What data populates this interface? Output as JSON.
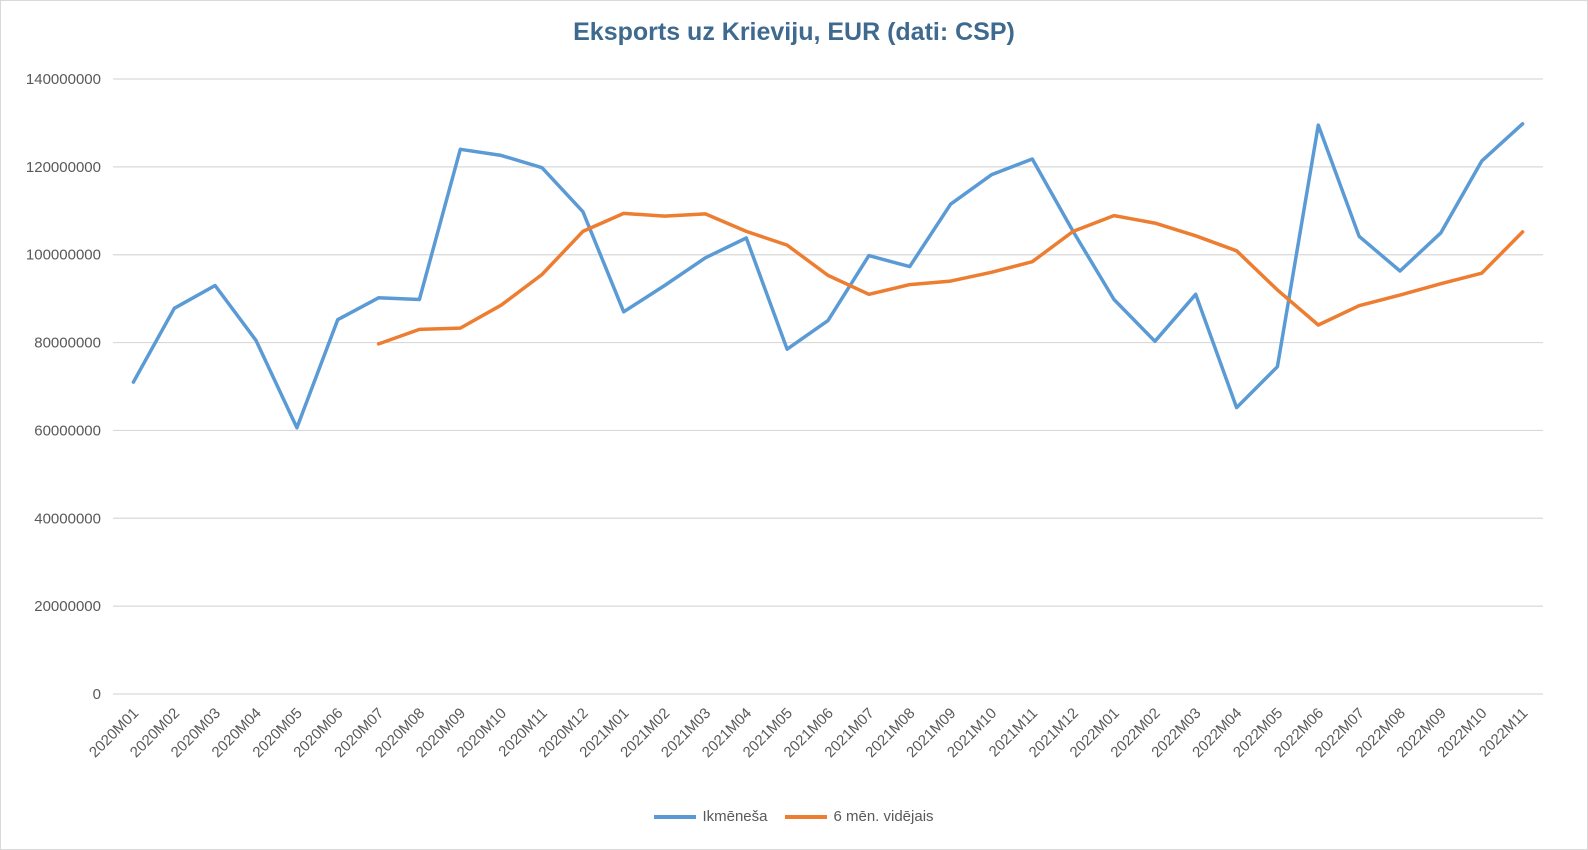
{
  "chart_data": {
    "type": "line",
    "title": "Eksports uz Krieviju, EUR (dati: CSP)",
    "xlabel": "",
    "ylabel": "",
    "ylim": [
      0,
      140000000
    ],
    "yticks": [
      0,
      20000000,
      40000000,
      60000000,
      80000000,
      100000000,
      120000000,
      140000000
    ],
    "ytick_labels": [
      "0",
      "20000000",
      "40000000",
      "60000000",
      "80000000",
      "100000000",
      "120000000",
      "140000000"
    ],
    "grid": true,
    "legend": "bottom",
    "categories": [
      "2020M01",
      "2020M02",
      "2020M03",
      "2020M04",
      "2020M05",
      "2020M06",
      "2020M07",
      "2020M08",
      "2020M09",
      "2020M10",
      "2020M11",
      "2020M12",
      "2021M01",
      "2021M02",
      "2021M03",
      "2021M04",
      "2021M05",
      "2021M06",
      "2021M07",
      "2021M08",
      "2021M09",
      "2021M10",
      "2021M11",
      "2021M12",
      "2022M01",
      "2022M02",
      "2022M03",
      "2022M04",
      "2022M05",
      "2022M06",
      "2022M07",
      "2022M08",
      "2022M09",
      "2022M10",
      "2022M11"
    ],
    "series": [
      {
        "name": "Ikmēneša",
        "color": "#5b9bd5",
        "values": [
          71000000,
          87800000,
          93000000,
          80500000,
          60600000,
          85200000,
          90200000,
          89800000,
          124000000,
          122600000,
          119800000,
          109800000,
          87000000,
          93000000,
          99300000,
          103800000,
          78500000,
          85000000,
          99800000,
          97300000,
          111500000,
          118200000,
          121800000,
          105300000,
          89800000,
          80300000,
          91000000,
          65200000,
          74500000,
          129500000,
          104200000,
          96300000,
          105000000,
          121300000,
          129800000
        ]
      },
      {
        "name": "6 mēn. vidējais",
        "color": "#ed7d31",
        "values": [
          null,
          null,
          null,
          null,
          null,
          null,
          79700000,
          83000000,
          83300000,
          88500000,
          95500000,
          105300000,
          109400000,
          108800000,
          109300000,
          105300000,
          102200000,
          95300000,
          91000000,
          93200000,
          94000000,
          96000000,
          98400000,
          105300000,
          108900000,
          107200000,
          104300000,
          100900000,
          92000000,
          84000000,
          88400000,
          90800000,
          93400000,
          95800000,
          105200000
        ]
      }
    ]
  }
}
